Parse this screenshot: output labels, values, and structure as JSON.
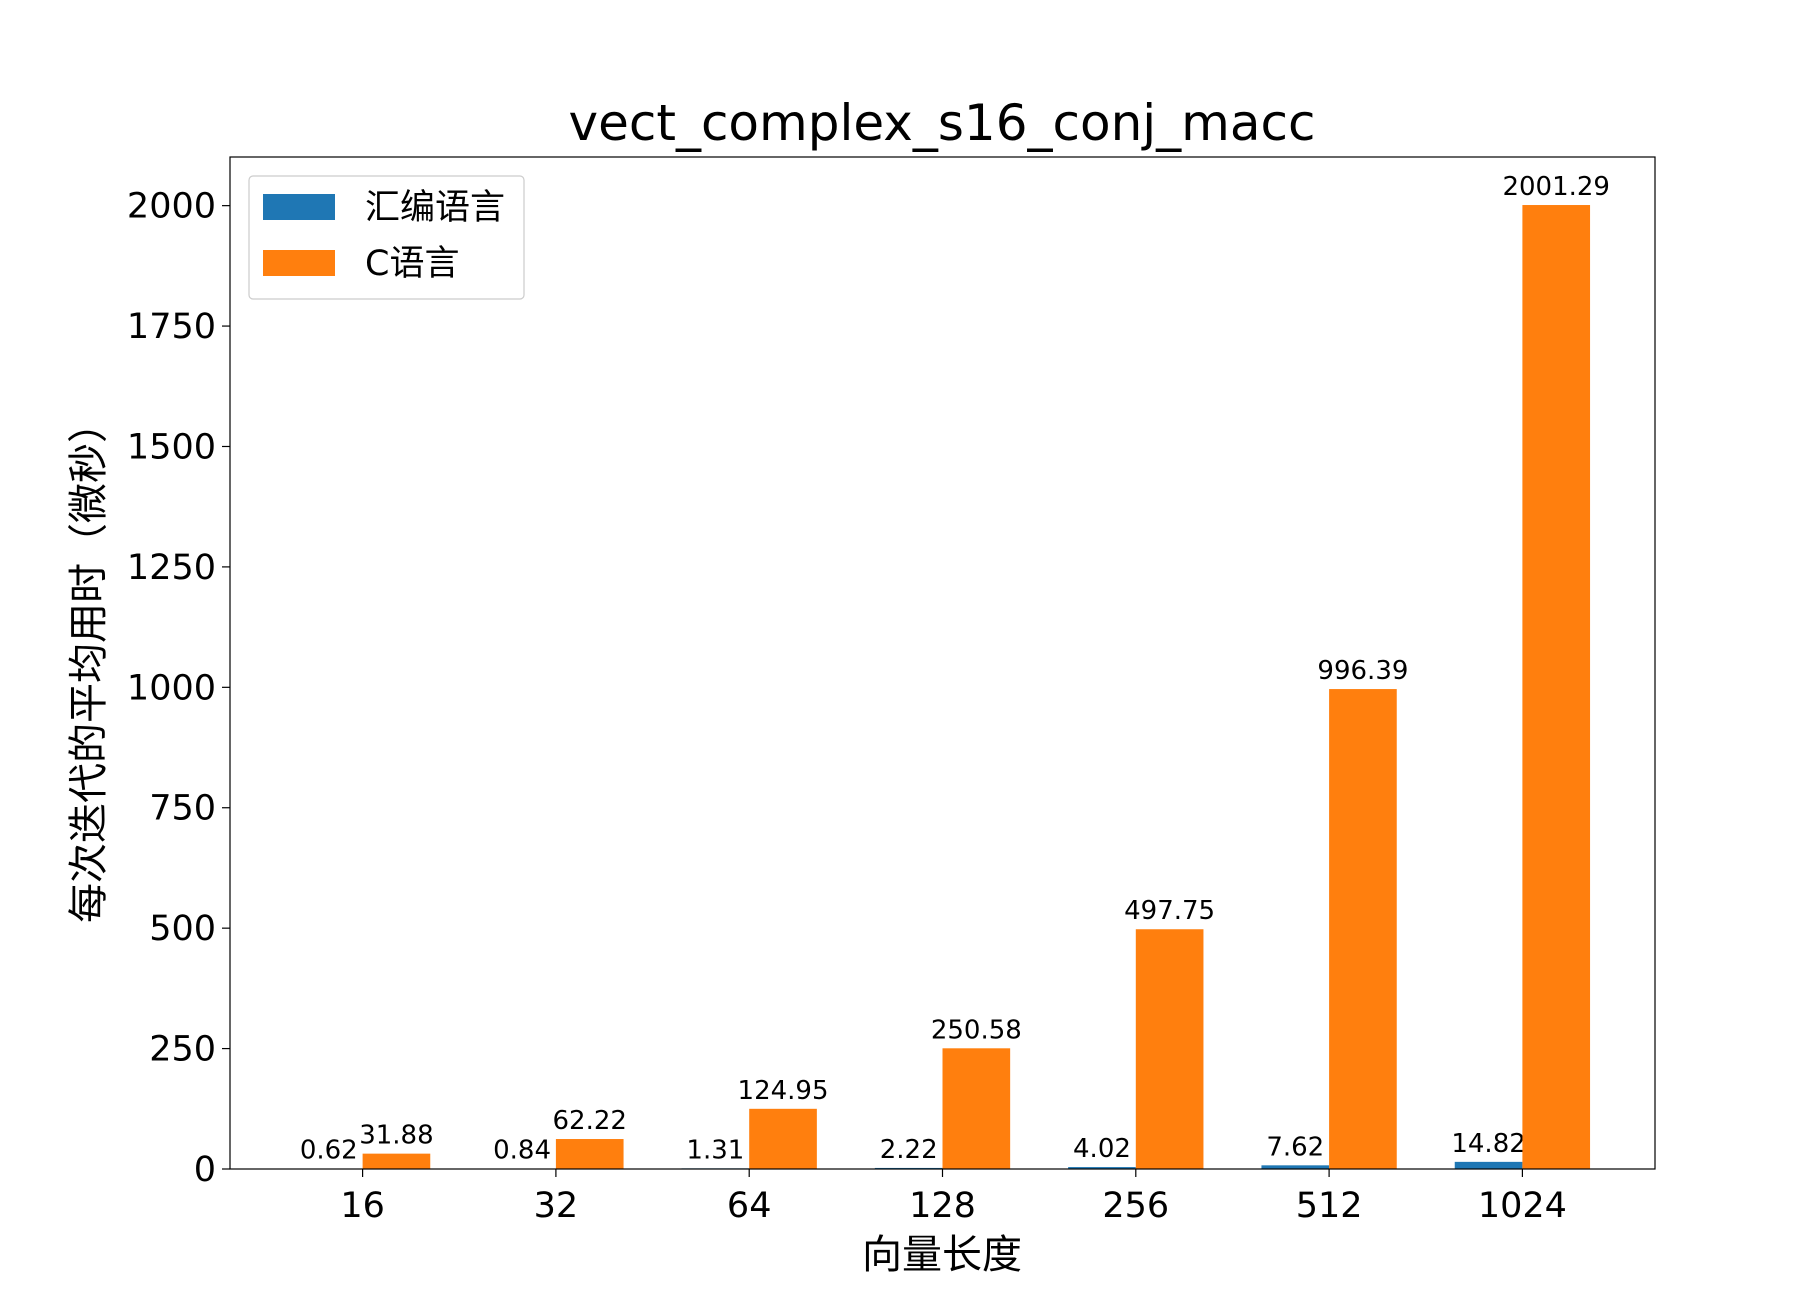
{
  "chart_data": {
    "type": "bar",
    "title": "vect_complex_s16_conj_macc",
    "x_label": "向量长度",
    "y_label": "每次迭代的平均用时（微秒）",
    "categories": [
      "16",
      "32",
      "64",
      "128",
      "256",
      "512",
      "1024"
    ],
    "series": [
      {
        "name": "汇编语言",
        "color": "#1f77b4",
        "values": [
          0.62,
          0.84,
          1.31,
          2.22,
          4.02,
          7.62,
          14.82
        ]
      },
      {
        "name": "C语言",
        "color": "#ff7f0e",
        "values": [
          31.88,
          62.22,
          124.95,
          250.58,
          497.75,
          996.39,
          2001.29
        ]
      }
    ],
    "ylim": [
      0,
      2101
    ],
    "yticks": [
      0,
      250,
      500,
      750,
      1000,
      1250,
      1500,
      1750,
      2000
    ],
    "legend": "upper left"
  }
}
